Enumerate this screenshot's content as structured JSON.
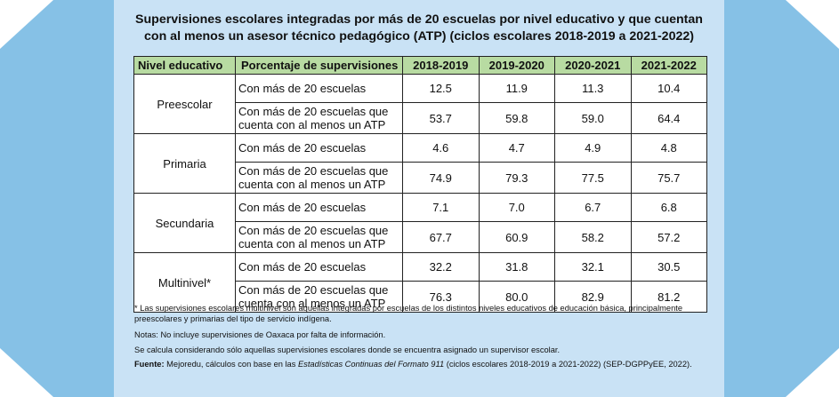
{
  "title_line1": "Supervisiones escolares integradas por más de 20 escuelas por nivel educativo y que cuentan",
  "title_line2": "con al menos un asesor técnico pedagógico (ATP) (ciclos escolares 2018-2019 a 2021-2022)",
  "headers": {
    "level": "Nivel educativo",
    "percent": "Porcentaje de supervisiones",
    "years": [
      "2018-2019",
      "2019-2020",
      "2020-2021",
      "2021-2022"
    ]
  },
  "rows_desc": {
    "a": "Con más de 20 escuelas",
    "b_line1": "Con más de 20 escuelas que",
    "b_line2": "cuenta con al menos un ATP"
  },
  "levels": [
    {
      "name": "Preescolar",
      "a": [
        "12.5",
        "11.9",
        "11.3",
        "10.4"
      ],
      "b": [
        "53.7",
        "59.8",
        "59.0",
        "64.4"
      ]
    },
    {
      "name": "Primaria",
      "a": [
        "4.6",
        "4.7",
        "4.9",
        "4.8"
      ],
      "b": [
        "74.9",
        "79.3",
        "77.5",
        "75.7"
      ]
    },
    {
      "name": "Secundaria",
      "a": [
        "7.1",
        "7.0",
        "6.7",
        "6.8"
      ],
      "b": [
        "67.7",
        "60.9",
        "58.2",
        "57.2"
      ]
    },
    {
      "name": "Multinivel*",
      "a": [
        "32.2",
        "31.8",
        "32.1",
        "30.5"
      ],
      "b": [
        "76.3",
        "80.0",
        "82.9",
        "81.2"
      ]
    }
  ],
  "notes": {
    "n1": "* Las supervisiones escolares multinivel son aquellas integradas por escuelas de los distintos niveles educativos de educación básica, principalmente preescolares y primarias del tipo de servicio indígena.",
    "n2": "Notas: No incluye supervisiones de Oaxaca por falta de información.",
    "n3": "Se calcula considerando sólo aquellas supervisiones escolares donde se encuentra asignado un supervisor escolar.",
    "source_label": "Fuente:",
    "source_pre": " Mejoredu, cálculos con base en las ",
    "source_italic": "Estadísticas Continuas del Formato 911",
    "source_post": " (ciclos escolares 2018-2019 a 2021-2022) (SEP-DGPPyEE, 2022)."
  },
  "colors": {
    "header_green": "#b8dba2",
    "panel_blue": "#c9e2f5",
    "side_blue": "#86c1e6"
  }
}
